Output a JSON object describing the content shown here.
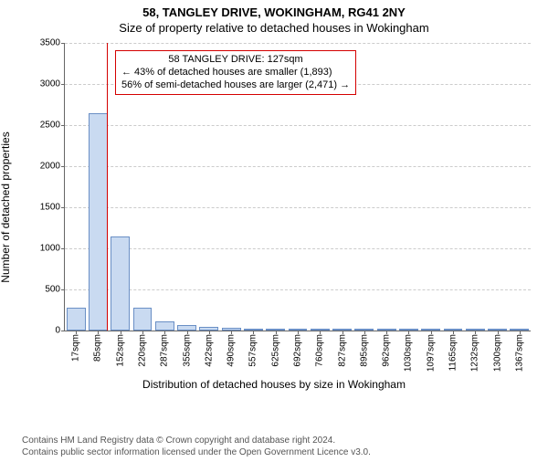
{
  "title_main": "58, TANGLEY DRIVE, WOKINGHAM, RG41 2NY",
  "title_sub": "Size of property relative to detached houses in Wokingham",
  "ylabel": "Number of detached properties",
  "xlabel": "Distribution of detached houses by size in Wokingham",
  "chart": {
    "type": "histogram",
    "ylim": [
      0,
      3500
    ],
    "ytick_step": 500,
    "yticks": [
      0,
      500,
      1000,
      1500,
      2000,
      2500,
      3000,
      3500
    ],
    "xticks_display": [
      "17sqm",
      "85sqm",
      "152sqm",
      "220sqm",
      "287sqm",
      "355sqm",
      "422sqm",
      "490sqm",
      "557sqm",
      "625sqm",
      "692sqm",
      "760sqm",
      "827sqm",
      "895sqm",
      "962sqm",
      "1030sqm",
      "1097sqm",
      "1165sqm",
      "1232sqm",
      "1300sqm",
      "1367sqm"
    ],
    "bar_count": 21,
    "bar_values_approx": [
      280,
      2650,
      1150,
      280,
      110,
      65,
      40,
      30,
      20,
      15,
      12,
      10,
      8,
      6,
      5,
      4,
      3,
      3,
      2,
      2,
      2
    ],
    "bar_fill": "#c9daf1",
    "bar_border": "#6a8fc5",
    "grid_color": "#cccccc",
    "axis_color": "#666666",
    "background": "#ffffff",
    "marker_line_color": "#d40000",
    "marker_value_sqm": 127,
    "x_range_sqm": [
      0,
      1400
    ],
    "annotation": {
      "line1": "58 TANGLEY DRIVE: 127sqm",
      "line2": "← 43% of detached houses are smaller (1,893)",
      "line3": "56% of semi-detached houses are larger (2,471) →",
      "border_color": "#d40000",
      "background": "#ffffff",
      "fontsize": 11
    }
  },
  "footer": {
    "line1": "Contains HM Land Registry data © Crown copyright and database right 2024.",
    "line2": "Contains public sector information licensed under the Open Government Licence v3.0."
  }
}
